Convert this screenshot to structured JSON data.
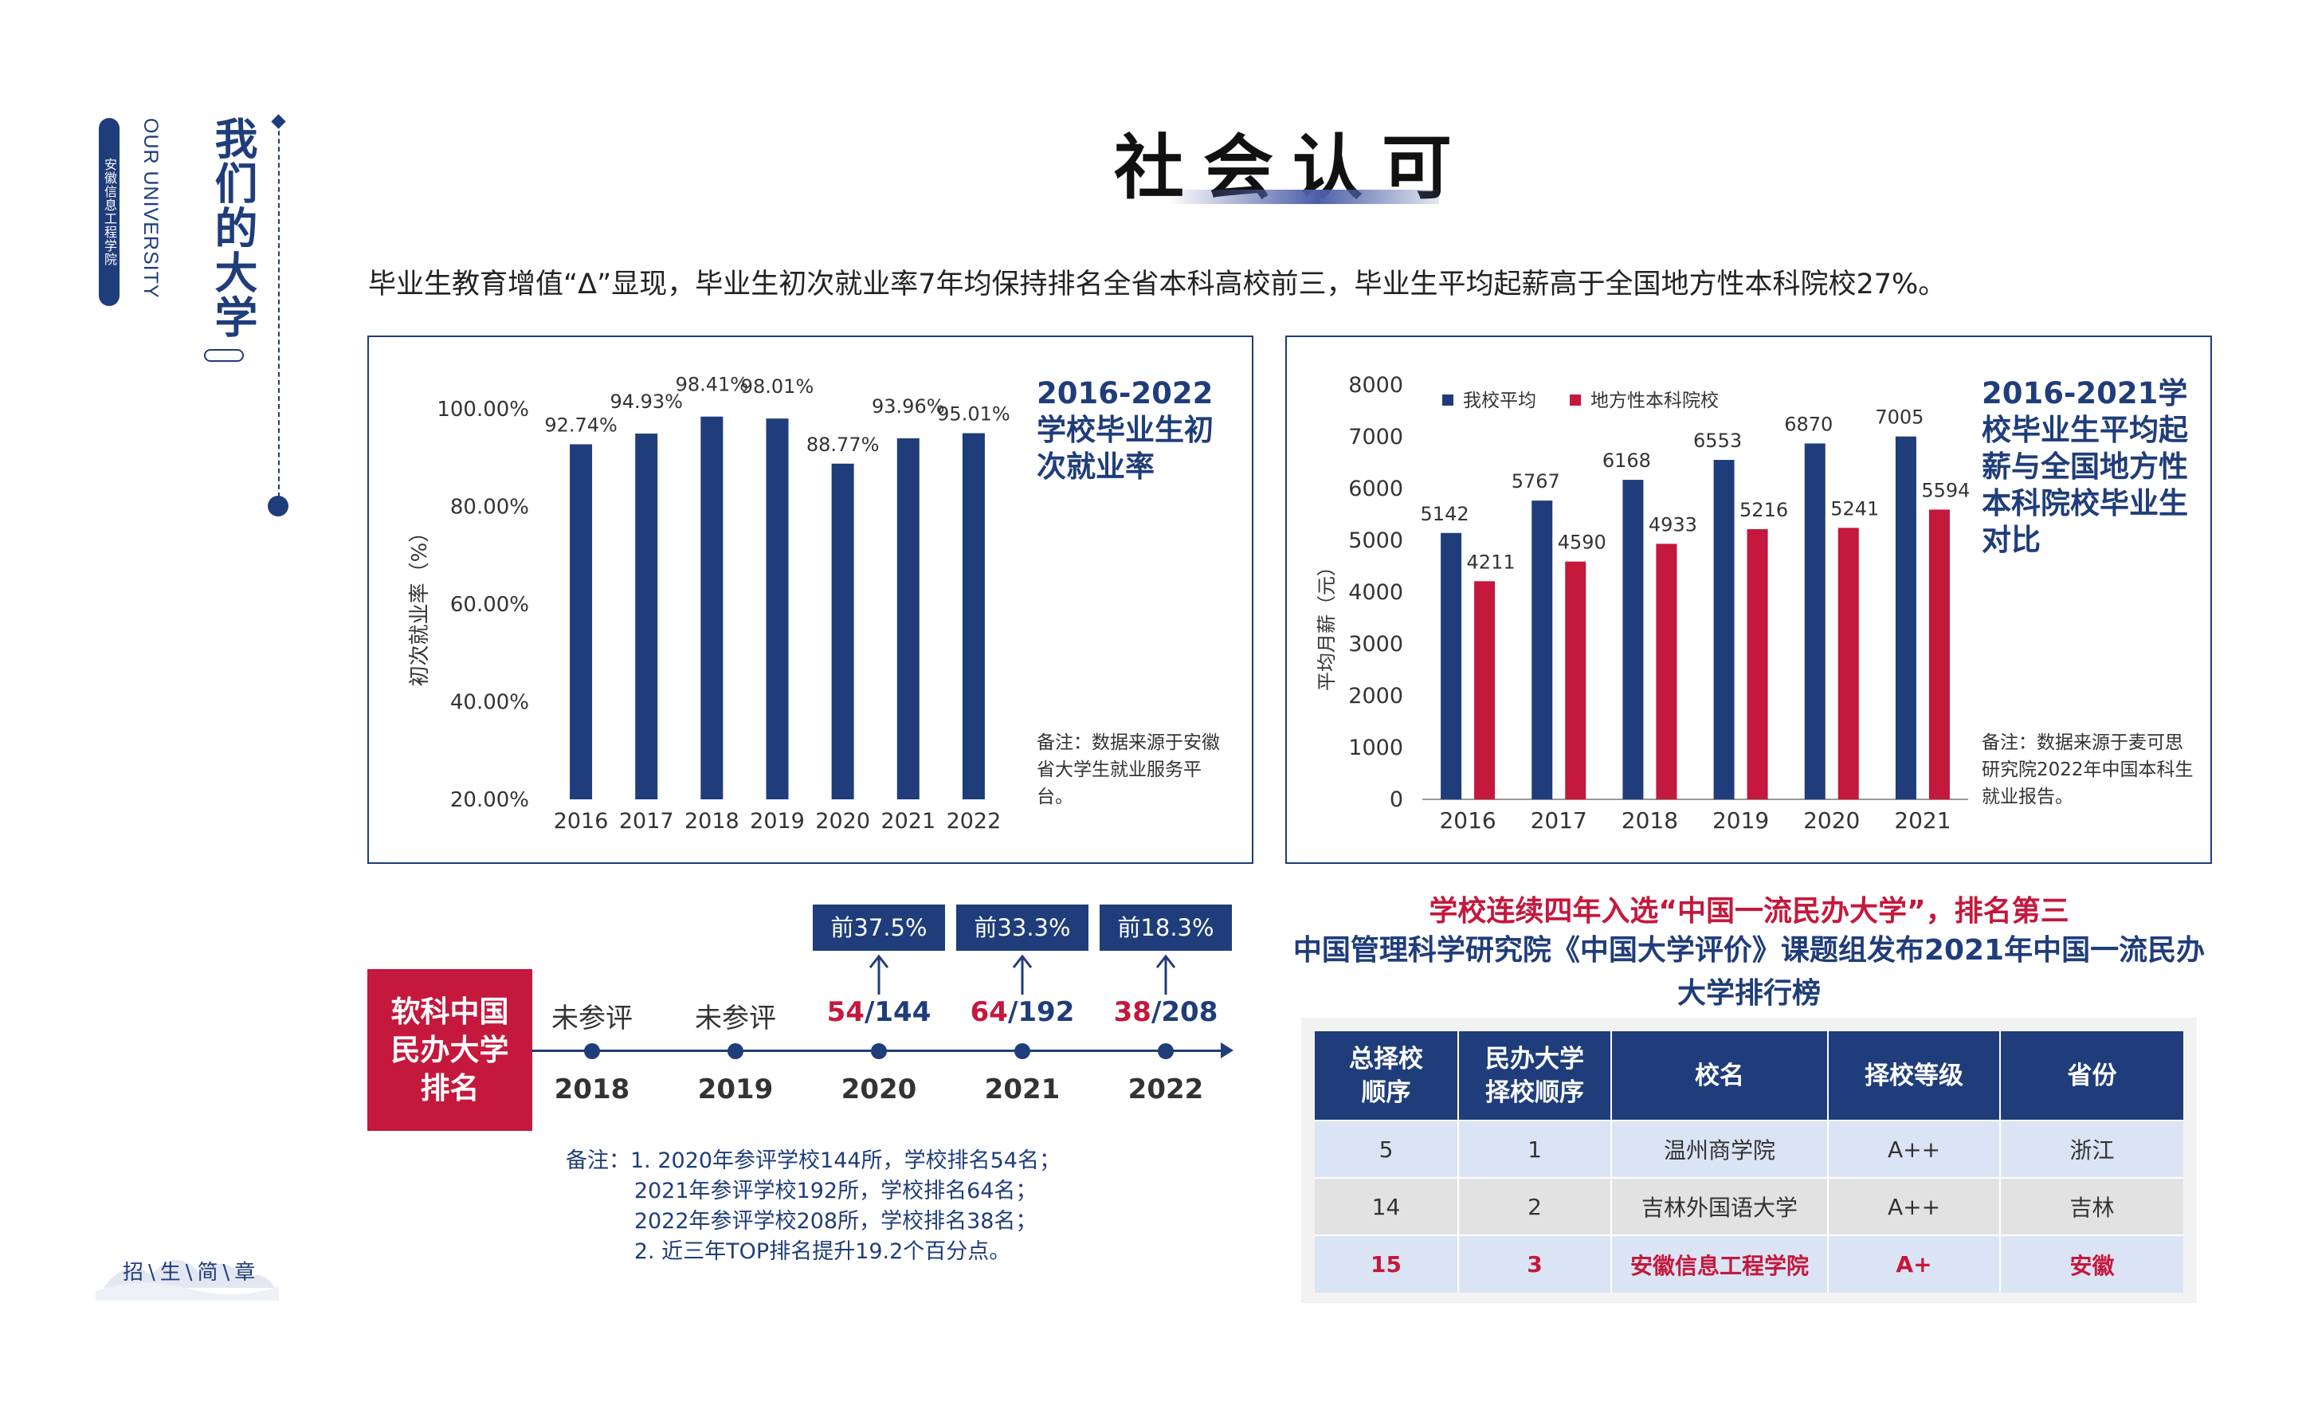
{
  "sidebar": {
    "school_vertical": "安徽信息工程学院",
    "en_title": "OUR UNIVERSITY",
    "cn_title": "我们的大学",
    "bottom_logo": "招\\生\\简\\章"
  },
  "header": {
    "title": "社会认可",
    "intro": "毕业生教育增值“Δ”显现，毕业生初次就业率7年均保持排名全省本科高校前三，毕业生平均起薪高于全国地方性本科院校27%。"
  },
  "chart_data": [
    {
      "type": "bar",
      "title": "2016-2022学校毕业生初次就业率",
      "ylabel": "初次就业率（%）",
      "categories": [
        "2016",
        "2017",
        "2018",
        "2019",
        "2020",
        "2021",
        "2022"
      ],
      "values": [
        92.74,
        94.93,
        98.41,
        98.01,
        88.77,
        93.96,
        95.01
      ],
      "value_labels": [
        "92.74%",
        "94.93%",
        "98.41%",
        "98.01%",
        "88.77%",
        "93.96%",
        "95.01%"
      ],
      "yticks": [
        "20.00%",
        "40.00%",
        "60.00%",
        "80.00%",
        "100.00%"
      ],
      "ylim": [
        20,
        100
      ],
      "note": "备注：数据来源于安徽省大学生就业服务平台。",
      "color": "#1f3d7a"
    },
    {
      "type": "bar",
      "title": "2016-2021学校毕业生平均起薪与全国地方性本科院校毕业生对比",
      "ylabel": "平均月薪（元）",
      "categories": [
        "2016",
        "2017",
        "2018",
        "2019",
        "2020",
        "2021"
      ],
      "series": [
        {
          "name": "我校平均",
          "values": [
            5142,
            5767,
            6168,
            6553,
            6870,
            7005
          ],
          "color": "#1f3d7a"
        },
        {
          "name": "地方性本科院校",
          "values": [
            4211,
            4590,
            4933,
            5216,
            5241,
            5594
          ],
          "color": "#c4183c"
        }
      ],
      "yticks": [
        "0",
        "1000",
        "2000",
        "3000",
        "4000",
        "5000",
        "6000",
        "7000",
        "8000"
      ],
      "ylim": [
        0,
        8000
      ],
      "legend": "top-left",
      "note": "备注：数据来源于麦可思研究院2022年中国本科生就业报告。"
    }
  ],
  "ranking": {
    "label": "软科中国民办大学排名",
    "years": [
      {
        "year": "2018",
        "text": "未参评"
      },
      {
        "year": "2019",
        "text": "未参评"
      },
      {
        "year": "2020",
        "rank": "54",
        "total": "/144",
        "pct": "前37.5%"
      },
      {
        "year": "2021",
        "rank": "64",
        "total": "/192",
        "pct": "前33.3%"
      },
      {
        "year": "2022",
        "rank": "38",
        "total": "/208",
        "pct": "前18.3%"
      }
    ],
    "note": "备注：1. 2020年参评学校144所，学校排名54名；\n          2021年参评学校192所，学校排名64名；\n          2022年参评学校208所，学校排名38名；\n          2. 近三年TOP排名提升19.2个百分点。"
  },
  "table_section": {
    "headline_red": "学校连续四年入选“中国一流民办大学”，排名第三",
    "headline_blue": "中国管理科学研究院《中国大学评价》课题组发布2021年中国一流民办大学排行榜",
    "columns": [
      "总择校顺序",
      "民办大学择校顺序",
      "校名",
      "择校等级",
      "省份"
    ],
    "rows": [
      [
        "5",
        "1",
        "温州商学院",
        "A++",
        "浙江"
      ],
      [
        "14",
        "2",
        "吉林外国语大学",
        "A++",
        "吉林"
      ],
      [
        "15",
        "3",
        "安徽信息工程学院",
        "A+",
        "安徽"
      ]
    ]
  }
}
